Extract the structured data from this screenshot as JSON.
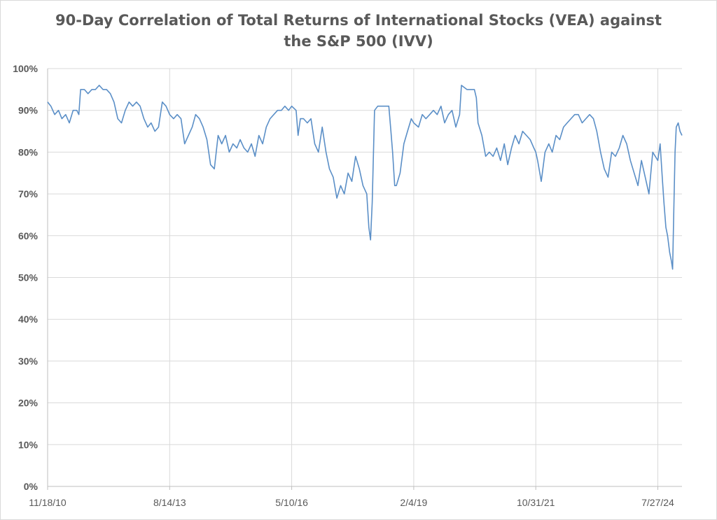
{
  "chart_data": {
    "type": "line",
    "title_lines": [
      "90-Day Correlation of Total Returns of International Stocks (VEA) against",
      "the S&P 500 (IVV)"
    ],
    "xlabel": "",
    "ylabel": "",
    "x_ticks": [
      "11/18/10",
      "8/14/13",
      "5/10/16",
      "2/4/19",
      "10/31/21",
      "7/27/24"
    ],
    "y_ticks": [
      "0%",
      "10%",
      "20%",
      "30%",
      "40%",
      "50%",
      "60%",
      "70%",
      "80%",
      "90%",
      "100%"
    ],
    "ylim": [
      0,
      100
    ],
    "grid": "horizontal and vertical",
    "legend": "none",
    "line_color": "#5b8fc7",
    "series": [
      {
        "points": [
          [
            "2010-11-18",
            92
          ],
          [
            "2010-12-15",
            91
          ],
          [
            "2011-01-15",
            89
          ],
          [
            "2011-02-15",
            90
          ],
          [
            "2011-03-15",
            88
          ],
          [
            "2011-04-15",
            89
          ],
          [
            "2011-05-15",
            87
          ],
          [
            "2011-06-15",
            90
          ],
          [
            "2011-07-15",
            90
          ],
          [
            "2011-08-01",
            89
          ],
          [
            "2011-08-15",
            95
          ],
          [
            "2011-09-15",
            95
          ],
          [
            "2011-10-15",
            94
          ],
          [
            "2011-11-15",
            95
          ],
          [
            "2011-12-15",
            95
          ],
          [
            "2012-01-15",
            96
          ],
          [
            "2012-02-15",
            95
          ],
          [
            "2012-03-15",
            95
          ],
          [
            "2012-04-15",
            94
          ],
          [
            "2012-05-15",
            92
          ],
          [
            "2012-06-15",
            88
          ],
          [
            "2012-07-15",
            87
          ],
          [
            "2012-08-15",
            90
          ],
          [
            "2012-09-15",
            92
          ],
          [
            "2012-10-15",
            91
          ],
          [
            "2012-11-15",
            92
          ],
          [
            "2012-12-15",
            91
          ],
          [
            "2013-01-15",
            88
          ],
          [
            "2013-02-15",
            86
          ],
          [
            "2013-03-15",
            87
          ],
          [
            "2013-04-15",
            85
          ],
          [
            "2013-05-15",
            86
          ],
          [
            "2013-06-15",
            92
          ],
          [
            "2013-07-15",
            91
          ],
          [
            "2013-08-14",
            89
          ],
          [
            "2013-09-15",
            88
          ],
          [
            "2013-10-15",
            89
          ],
          [
            "2013-11-15",
            88
          ],
          [
            "2013-12-15",
            82
          ],
          [
            "2014-01-15",
            84
          ],
          [
            "2014-02-15",
            86
          ],
          [
            "2014-03-15",
            89
          ],
          [
            "2014-04-15",
            88
          ],
          [
            "2014-05-15",
            86
          ],
          [
            "2014-06-15",
            83
          ],
          [
            "2014-07-15",
            77
          ],
          [
            "2014-08-15",
            76
          ],
          [
            "2014-09-15",
            84
          ],
          [
            "2014-10-15",
            82
          ],
          [
            "2014-11-15",
            84
          ],
          [
            "2014-12-15",
            80
          ],
          [
            "2015-01-15",
            82
          ],
          [
            "2015-02-15",
            81
          ],
          [
            "2015-03-15",
            83
          ],
          [
            "2015-04-15",
            81
          ],
          [
            "2015-05-15",
            80
          ],
          [
            "2015-06-15",
            82
          ],
          [
            "2015-07-15",
            79
          ],
          [
            "2015-08-15",
            84
          ],
          [
            "2015-09-15",
            82
          ],
          [
            "2015-10-15",
            86
          ],
          [
            "2015-11-15",
            88
          ],
          [
            "2015-12-15",
            89
          ],
          [
            "2016-01-15",
            90
          ],
          [
            "2016-02-15",
            90
          ],
          [
            "2016-03-15",
            91
          ],
          [
            "2016-04-15",
            90
          ],
          [
            "2016-05-10",
            91
          ],
          [
            "2016-06-15",
            90
          ],
          [
            "2016-07-01",
            84
          ],
          [
            "2016-07-20",
            88
          ],
          [
            "2016-08-15",
            88
          ],
          [
            "2016-09-15",
            87
          ],
          [
            "2016-10-15",
            88
          ],
          [
            "2016-11-15",
            82
          ],
          [
            "2016-12-15",
            80
          ],
          [
            "2017-01-15",
            86
          ],
          [
            "2017-02-15",
            80
          ],
          [
            "2017-03-15",
            76
          ],
          [
            "2017-04-15",
            74
          ],
          [
            "2017-05-15",
            69
          ],
          [
            "2017-06-15",
            72
          ],
          [
            "2017-07-15",
            70
          ],
          [
            "2017-08-15",
            75
          ],
          [
            "2017-09-15",
            73
          ],
          [
            "2017-10-15",
            79
          ],
          [
            "2017-11-15",
            76
          ],
          [
            "2017-12-15",
            72
          ],
          [
            "2018-01-15",
            70
          ],
          [
            "2018-02-01",
            62
          ],
          [
            "2018-02-15",
            59
          ],
          [
            "2018-03-01",
            68
          ],
          [
            "2018-03-20",
            90
          ],
          [
            "2018-04-15",
            91
          ],
          [
            "2018-05-15",
            91
          ],
          [
            "2018-06-15",
            91
          ],
          [
            "2018-07-15",
            91
          ],
          [
            "2018-08-01",
            85
          ],
          [
            "2018-08-15",
            80
          ],
          [
            "2018-09-01",
            72
          ],
          [
            "2018-09-15",
            72
          ],
          [
            "2018-10-15",
            75
          ],
          [
            "2018-11-15",
            82
          ],
          [
            "2018-12-15",
            85
          ],
          [
            "2019-01-15",
            88
          ],
          [
            "2019-02-04",
            87
          ],
          [
            "2019-03-15",
            86
          ],
          [
            "2019-04-15",
            89
          ],
          [
            "2019-05-15",
            88
          ],
          [
            "2019-06-15",
            89
          ],
          [
            "2019-07-15",
            90
          ],
          [
            "2019-08-15",
            89
          ],
          [
            "2019-09-15",
            91
          ],
          [
            "2019-10-15",
            87
          ],
          [
            "2019-11-15",
            89
          ],
          [
            "2019-12-15",
            90
          ],
          [
            "2020-01-15",
            86
          ],
          [
            "2020-02-15",
            89
          ],
          [
            "2020-03-01",
            96
          ],
          [
            "2020-04-15",
            95
          ],
          [
            "2020-05-15",
            95
          ],
          [
            "2020-06-15",
            95
          ],
          [
            "2020-07-01",
            93
          ],
          [
            "2020-07-15",
            87
          ],
          [
            "2020-08-15",
            84
          ],
          [
            "2020-09-15",
            79
          ],
          [
            "2020-10-15",
            80
          ],
          [
            "2020-11-15",
            79
          ],
          [
            "2020-12-15",
            81
          ],
          [
            "2021-01-15",
            78
          ],
          [
            "2021-02-15",
            82
          ],
          [
            "2021-03-15",
            77
          ],
          [
            "2021-04-15",
            81
          ],
          [
            "2021-05-15",
            84
          ],
          [
            "2021-06-15",
            82
          ],
          [
            "2021-07-15",
            85
          ],
          [
            "2021-08-15",
            84
          ],
          [
            "2021-09-15",
            83
          ],
          [
            "2021-10-15",
            81
          ],
          [
            "2021-10-31",
            80
          ],
          [
            "2021-11-15",
            78
          ],
          [
            "2021-12-15",
            73
          ],
          [
            "2022-01-15",
            80
          ],
          [
            "2022-02-15",
            82
          ],
          [
            "2022-03-15",
            80
          ],
          [
            "2022-04-15",
            84
          ],
          [
            "2022-05-15",
            83
          ],
          [
            "2022-06-15",
            86
          ],
          [
            "2022-07-15",
            87
          ],
          [
            "2022-08-15",
            88
          ],
          [
            "2022-09-15",
            89
          ],
          [
            "2022-10-15",
            89
          ],
          [
            "2022-11-15",
            87
          ],
          [
            "2022-12-15",
            88
          ],
          [
            "2023-01-15",
            89
          ],
          [
            "2023-02-15",
            88
          ],
          [
            "2023-03-15",
            85
          ],
          [
            "2023-04-15",
            80
          ],
          [
            "2023-05-15",
            76
          ],
          [
            "2023-06-15",
            74
          ],
          [
            "2023-07-15",
            80
          ],
          [
            "2023-08-15",
            79
          ],
          [
            "2023-09-15",
            81
          ],
          [
            "2023-10-15",
            84
          ],
          [
            "2023-11-15",
            82
          ],
          [
            "2023-12-15",
            78
          ],
          [
            "2024-01-15",
            75
          ],
          [
            "2024-02-15",
            72
          ],
          [
            "2024-03-15",
            78
          ],
          [
            "2024-04-15",
            74
          ],
          [
            "2024-05-15",
            70
          ],
          [
            "2024-06-15",
            80
          ],
          [
            "2024-07-27",
            78
          ],
          [
            "2024-08-15",
            82
          ],
          [
            "2024-09-01",
            74
          ],
          [
            "2024-09-15",
            68
          ],
          [
            "2024-10-01",
            62
          ],
          [
            "2024-10-15",
            60
          ],
          [
            "2024-11-01",
            56
          ],
          [
            "2024-11-15",
            54
          ],
          [
            "2024-11-25",
            52
          ],
          [
            "2024-12-05",
            66
          ],
          [
            "2024-12-15",
            80
          ],
          [
            "2024-12-25",
            86
          ],
          [
            "2025-01-10",
            87
          ],
          [
            "2025-01-25",
            85
          ],
          [
            "2025-02-10",
            84
          ]
        ]
      }
    ]
  }
}
